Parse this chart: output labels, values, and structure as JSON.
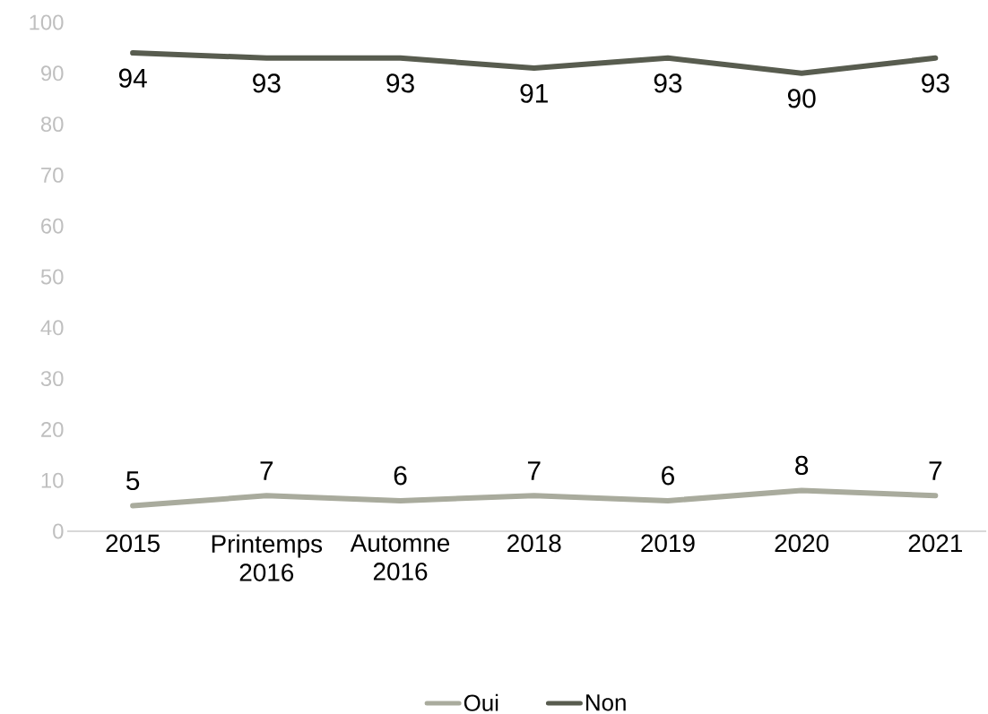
{
  "chart_data": {
    "type": "line",
    "categories": [
      "2015",
      "Printemps 2016",
      "Automne 2016",
      "2018",
      "2019",
      "2020",
      "2021"
    ],
    "series": [
      {
        "name": "Oui",
        "color": "#a9ab9d",
        "values": [
          5,
          7,
          6,
          7,
          6,
          8,
          7
        ]
      },
      {
        "name": "Non",
        "color": "#585c4f",
        "values": [
          94,
          93,
          93,
          91,
          93,
          90,
          93
        ]
      }
    ],
    "ylim": [
      0,
      100
    ],
    "yticks": [
      0,
      10,
      20,
      30,
      40,
      50,
      60,
      70,
      80,
      90,
      100
    ],
    "data_labels": true,
    "legend": "bottom",
    "grid": false,
    "marker": "none",
    "line_style": "solid"
  }
}
